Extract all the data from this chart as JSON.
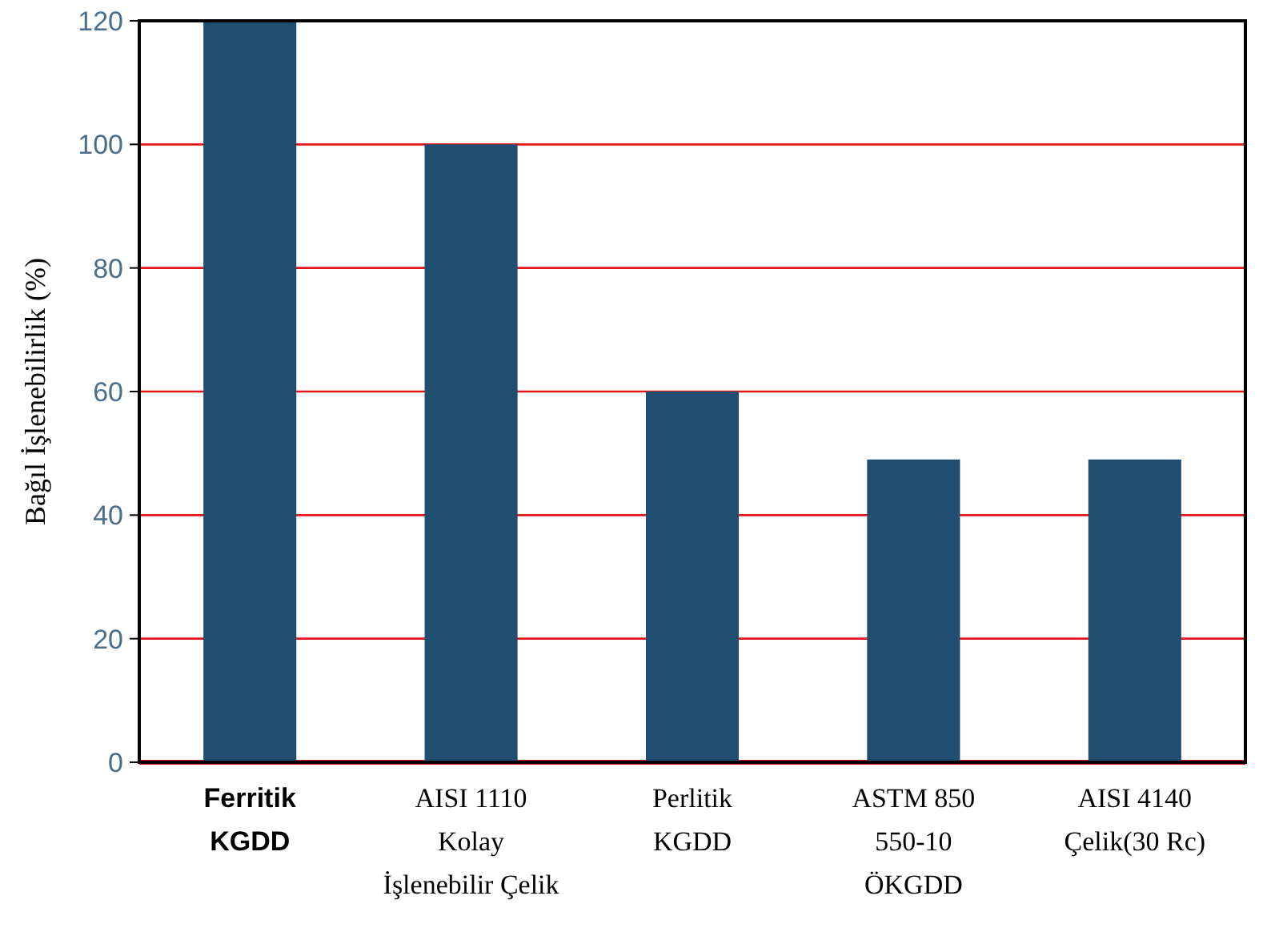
{
  "chart_data": {
    "type": "bar",
    "ylabel": "Bağıl İşlenebilirlik (%)",
    "categories": [
      "Ferritik\nKGDD",
      "AISI 1110\nKolay\nİşlenebilir Çelik",
      "Perlitik\nKGDD",
      "ASTM 850\n550-10\nÖKGDD",
      "AISI 4140\nÇelik(30 Rc)"
    ],
    "values": [
      120,
      100,
      60,
      49,
      49
    ],
    "color": "#1f4e71",
    "ylim": [
      0,
      120
    ],
    "yticks": [
      0,
      20,
      40,
      60,
      80,
      100,
      120
    ],
    "grid": "y"
  }
}
